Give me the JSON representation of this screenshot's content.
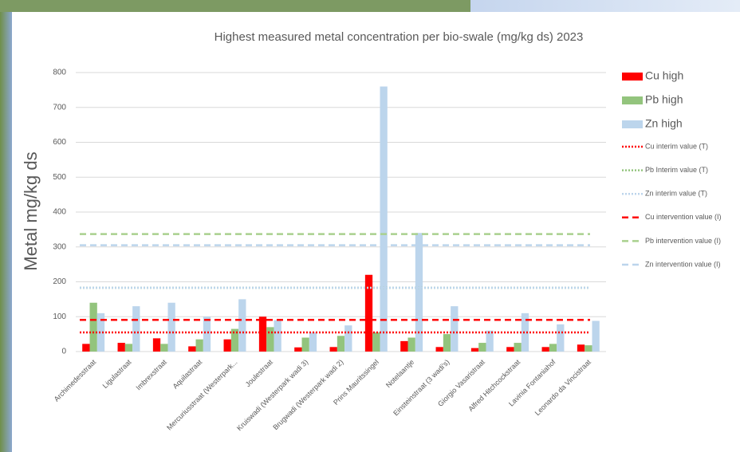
{
  "chart_data": {
    "type": "bar",
    "title": "Highest measured metal concentration per bio-swale (mg/kg ds) 2023",
    "y_label": "Metal mg/kg ds",
    "categories": [
      "Archimedesstraat",
      "Ligulastraat",
      "Imbrexstraat",
      "Aquilastraat",
      "Mercuriusstraat (Westerpark...",
      "Joulestraat",
      "Kruiswadi (Westerpark wadi 3)",
      "Brugwadi (Westerpark wadi 2)",
      "Prins Mauritssingel",
      "Notelaantje",
      "Einsteinstraat (3 wadi's)",
      "Giorgio Vasaristraat",
      "Alfred Hitchcockstraat",
      "Lavinia Fontaniahof",
      "Leonardo da Vincistraat"
    ],
    "series": [
      {
        "name": "Cu high",
        "color": "#ff0000",
        "values": [
          22,
          25,
          38,
          15,
          35,
          100,
          12,
          13,
          220,
          30,
          13,
          10,
          13,
          13,
          20
        ]
      },
      {
        "name": "Pb high",
        "color": "#93c47d",
        "values": [
          140,
          22,
          22,
          35,
          65,
          70,
          40,
          45,
          55,
          40,
          50,
          25,
          25,
          22,
          18
        ]
      },
      {
        "name": "Zn high",
        "color": "#bcd5ec",
        "values": [
          110,
          130,
          140,
          100,
          150,
          90,
          55,
          75,
          760,
          340,
          130,
          60,
          110,
          78,
          88
        ]
      }
    ],
    "lines": [
      {
        "name": "Cu interim value (T)",
        "color": "#ff0000",
        "style": "dotted",
        "value": 55
      },
      {
        "name": "Pb Interim value (T)",
        "color": "#93c47d",
        "style": "dotted",
        "value": 183
      },
      {
        "name": "Zn interim value (T)",
        "color": "#bcd5ec",
        "style": "dotted",
        "value": 183
      },
      {
        "name": "Cu intervention value (I)",
        "color": "#ff0000",
        "style": "dashed",
        "value": 91
      },
      {
        "name": "Pb intervention value (I)",
        "color": "#a9d18e",
        "style": "dashed",
        "value": 337
      },
      {
        "name": "Zn intervention value (I)",
        "color": "#bcd5ec",
        "style": "dashed",
        "value": 305
      }
    ],
    "ylim": [
      0,
      800
    ],
    "yticks": [
      0,
      100,
      200,
      300,
      400,
      500,
      600,
      700,
      800
    ],
    "grid": true,
    "legend": "right"
  }
}
